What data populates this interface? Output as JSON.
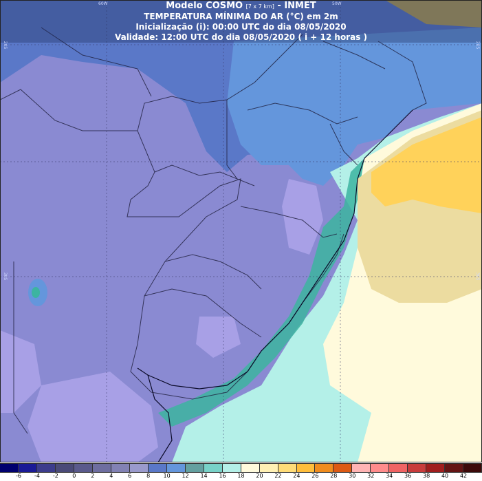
{
  "header": {
    "title_prefix": "Modelo COSMO",
    "resolution": "[7 x 7 km]",
    "title_suffix": "- INMET",
    "variable": "TEMPERATURA MÍNIMA DO AR (°C) em 2m",
    "init": "Inicialização (i): 00:00 UTC do dia 08/05/2020",
    "valid": "Validade: 12:00 UTC do dia 08/05/2020 ( i + 12 horas )"
  },
  "grid_labels": {
    "lon_left": "60W",
    "lon_right": "50W",
    "lat_top_left": "20S",
    "lat_top_right": "20S",
    "lat_mid_left": "30S",
    "lat_mid_right": "30S"
  },
  "colorbar": {
    "labels": [
      "-6",
      "-4",
      "-2",
      "0",
      "2",
      "4",
      "6",
      "8",
      "10",
      "12",
      "14",
      "16",
      "18",
      "20",
      "22",
      "24",
      "26",
      "28",
      "30",
      "32",
      "34",
      "36",
      "38",
      "40",
      "42"
    ],
    "colors": [
      "#00006e",
      "#1a1a96",
      "#3c3c8c",
      "#4a4a78",
      "#5a5a8c",
      "#6e6ea0",
      "#8282b4",
      "#9a9acc",
      "#5a78c8",
      "#6496dc",
      "#64a0a0",
      "#78d2c8",
      "#b4f0e8",
      "#fffadc",
      "#fff0b4",
      "#ffdc78",
      "#ffbe3c",
      "#f08c1e",
      "#dc5a14",
      "#ffb4b4",
      "#ff8c8c",
      "#f06464",
      "#c83c3c",
      "#a01e1e",
      "#641414",
      "#3c0a0a"
    ]
  },
  "colors": {
    "cold_violet": "#8a8ad2",
    "light_violet": "#a8a0e6",
    "steel_blue": "#5a78c8",
    "blue": "#6496dc",
    "teal": "#3cb4a0",
    "aqua": "#b4f0e8",
    "cream": "#fffadc",
    "sand": "#ecdca0",
    "gold": "#ffd25a",
    "olive": "#b4a05a"
  }
}
